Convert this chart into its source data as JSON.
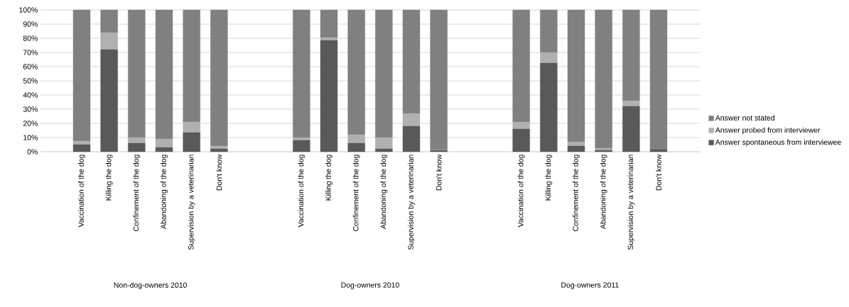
{
  "chart_data": {
    "type": "bar",
    "stacked": true,
    "grid": "y",
    "legend": "right",
    "categories": [
      null,
      "Vaccination of the dog",
      "Killing the dog",
      "Confinement of the dog",
      "Abandoning of the dog",
      "Supervision by a veterinarian",
      "Don't know",
      null,
      null,
      "Vaccination of the dog",
      "Killing the dog",
      "Confinement of the dog",
      "Abandoning of the dog",
      "Supervision by a veterinarian",
      "Don't know",
      null,
      null,
      "Vaccination of the dog",
      "Killing the dog",
      "Confinement of the dog",
      "Abandoning of the dog",
      "Supervision by a veterinarian",
      "Don't know",
      null
    ],
    "ylim": [
      0,
      100
    ],
    "yticks": [
      {
        "value": 0,
        "label": "0%"
      },
      {
        "value": 10,
        "label": "10%"
      },
      {
        "value": 20,
        "label": "20%"
      },
      {
        "value": 30,
        "label": "30%"
      },
      {
        "value": 40,
        "label": "40%"
      },
      {
        "value": 50,
        "label": "50%"
      },
      {
        "value": 60,
        "label": "60%"
      },
      {
        "value": 70,
        "label": "70%"
      },
      {
        "value": 80,
        "label": "80%"
      },
      {
        "value": 90,
        "label": "90%"
      },
      {
        "value": 100,
        "label": "100%"
      }
    ],
    "series": [
      {
        "name": "Answer spontaneous from interviewee",
        "color": "#595959",
        "values": [
          null,
          5,
          72,
          6,
          3,
          13.5,
          2,
          null,
          null,
          8,
          78.5,
          6,
          2,
          18,
          1,
          null,
          null,
          16,
          62.5,
          4,
          1,
          32,
          1.5,
          null
        ]
      },
      {
        "name": "Answer probed from interviewer",
        "color": "#b0b0b0",
        "values": [
          null,
          2.5,
          12,
          4,
          6,
          7.5,
          2,
          null,
          null,
          2,
          2,
          6,
          8,
          9,
          0.5,
          null,
          null,
          5,
          7.5,
          3,
          1.5,
          4,
          0,
          null
        ]
      },
      {
        "name": "Answer not stated",
        "color": "#808080",
        "values": [
          null,
          92.5,
          16,
          90,
          91,
          79,
          96,
          null,
          null,
          90,
          19.5,
          88,
          90,
          73,
          98.5,
          null,
          null,
          79,
          30,
          93,
          97.5,
          64,
          98.5,
          null
        ]
      }
    ],
    "annotations": [
      "Non-dog-owners 2010",
      "Dog-owners 2010",
      "Dog-owners 2011"
    ]
  }
}
